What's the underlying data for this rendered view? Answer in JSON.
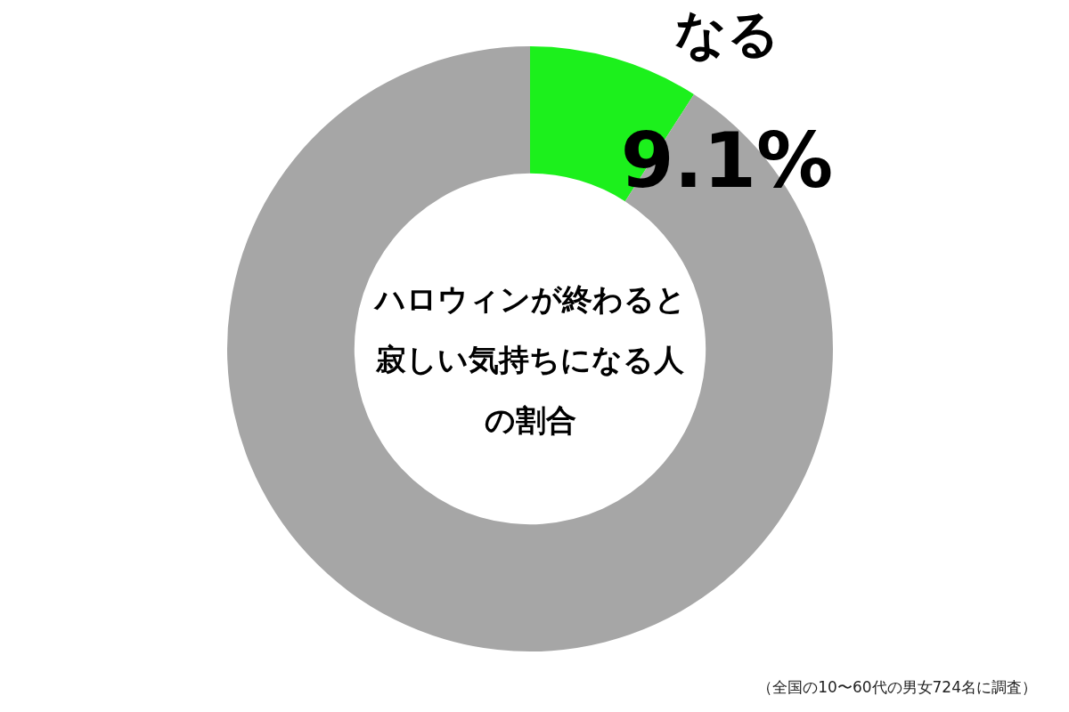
{
  "chart_data": {
    "type": "donut",
    "title": "ハロウィンが終わると寂しい気持ちになる人の割合",
    "categories": [
      "なる",
      null
    ],
    "values": [
      9.1,
      90.9
    ],
    "value_labels": [
      "9.1%",
      null
    ],
    "colors": [
      "#1cf01c",
      "#a6a6a6"
    ],
    "legend": false,
    "annotations": [
      "（全国の10〜60代の男女724名に調査）"
    ]
  }
}
